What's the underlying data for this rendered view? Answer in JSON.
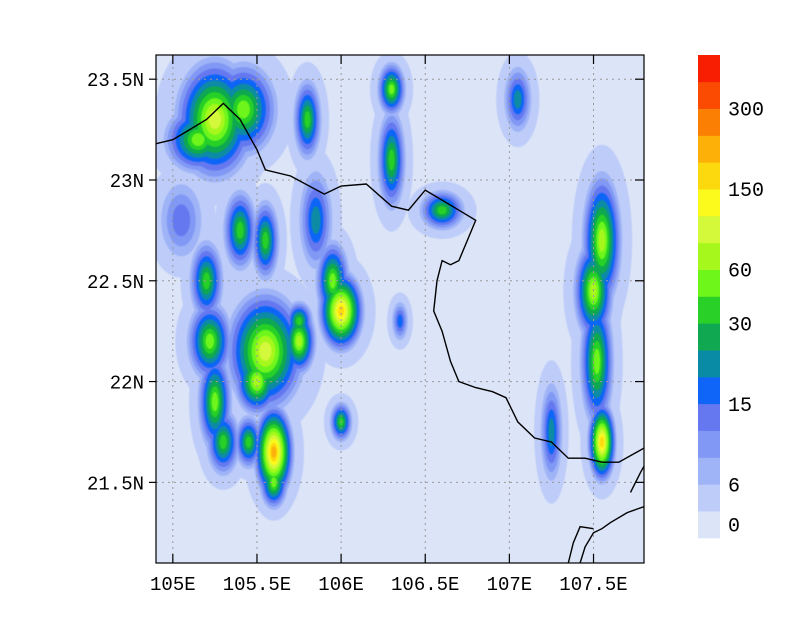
{
  "chart_data": {
    "type": "heatmap",
    "title": "",
    "xlabel": "",
    "ylabel": "",
    "xlim": [
      104.9,
      107.8
    ],
    "ylim": [
      21.1,
      23.62
    ],
    "x_ticks": [
      {
        "value": 105.0,
        "label": "105E"
      },
      {
        "value": 105.5,
        "label": "105.5E"
      },
      {
        "value": 106.0,
        "label": "106E"
      },
      {
        "value": 106.5,
        "label": "106.5E"
      },
      {
        "value": 107.0,
        "label": "107E"
      },
      {
        "value": 107.5,
        "label": "107.5E"
      }
    ],
    "y_ticks": [
      {
        "value": 21.5,
        "label": "21.5N"
      },
      {
        "value": 22.0,
        "label": "22N"
      },
      {
        "value": 22.5,
        "label": "22.5N"
      },
      {
        "value": 23.0,
        "label": "23N"
      },
      {
        "value": 23.5,
        "label": "23.5N"
      }
    ],
    "grid": true,
    "colorbar": {
      "levels": [
        {
          "value": 0,
          "color": "#dce4f8"
        },
        {
          "value": 3,
          "color": "#bdccf8"
        },
        {
          "value": 6,
          "color": "#9fb3f7"
        },
        {
          "value": 9,
          "color": "#8199f4"
        },
        {
          "value": 12,
          "color": "#6578f0"
        },
        {
          "value": 15,
          "color": "#0f65f7"
        },
        {
          "value": 20,
          "color": "#0a8ba5"
        },
        {
          "value": 25,
          "color": "#10a850"
        },
        {
          "value": 30,
          "color": "#28d028"
        },
        {
          "value": 45,
          "color": "#6ef61a"
        },
        {
          "value": 60,
          "color": "#a6f81c"
        },
        {
          "value": 80,
          "color": "#d4f83a"
        },
        {
          "value": 100,
          "color": "#fbfa1c"
        },
        {
          "value": 150,
          "color": "#fcd80f"
        },
        {
          "value": 200,
          "color": "#fdb007"
        },
        {
          "value": 250,
          "color": "#fb7f03"
        },
        {
          "value": 300,
          "color": "#fb4b03"
        },
        {
          "value": 350,
          "color": "#f81e02"
        }
      ],
      "labels": [
        "0",
        "6",
        "15",
        "30",
        "60",
        "150",
        "300"
      ]
    },
    "precip_cells": [
      {
        "lon": 105.25,
        "lat": 23.3,
        "rx": 0.14,
        "ry": 0.18,
        "value": 80
      },
      {
        "lon": 105.15,
        "lat": 23.2,
        "rx": 0.12,
        "ry": 0.1,
        "value": 45
      },
      {
        "lon": 105.42,
        "lat": 23.35,
        "rx": 0.12,
        "ry": 0.14,
        "value": 45
      },
      {
        "lon": 105.05,
        "lat": 22.8,
        "rx": 0.08,
        "ry": 0.12,
        "value": 12
      },
      {
        "lon": 105.2,
        "lat": 22.5,
        "rx": 0.06,
        "ry": 0.12,
        "value": 30
      },
      {
        "lon": 105.22,
        "lat": 22.2,
        "rx": 0.08,
        "ry": 0.12,
        "value": 45
      },
      {
        "lon": 105.25,
        "lat": 21.9,
        "rx": 0.06,
        "ry": 0.15,
        "value": 45
      },
      {
        "lon": 105.3,
        "lat": 21.7,
        "rx": 0.06,
        "ry": 0.1,
        "value": 30
      },
      {
        "lon": 105.55,
        "lat": 22.15,
        "rx": 0.14,
        "ry": 0.18,
        "value": 80
      },
      {
        "lon": 105.5,
        "lat": 22.0,
        "rx": 0.08,
        "ry": 0.1,
        "value": 60
      },
      {
        "lon": 105.6,
        "lat": 21.65,
        "rx": 0.07,
        "ry": 0.14,
        "value": 200
      },
      {
        "lon": 105.6,
        "lat": 21.5,
        "rx": 0.05,
        "ry": 0.08,
        "value": 45
      },
      {
        "lon": 105.45,
        "lat": 21.7,
        "rx": 0.05,
        "ry": 0.08,
        "value": 30
      },
      {
        "lon": 105.4,
        "lat": 22.75,
        "rx": 0.06,
        "ry": 0.12,
        "value": 30
      },
      {
        "lon": 105.55,
        "lat": 22.7,
        "rx": 0.05,
        "ry": 0.12,
        "value": 30
      },
      {
        "lon": 105.75,
        "lat": 22.2,
        "rx": 0.06,
        "ry": 0.1,
        "value": 60
      },
      {
        "lon": 105.75,
        "lat": 22.3,
        "rx": 0.05,
        "ry": 0.06,
        "value": 30
      },
      {
        "lon": 105.8,
        "lat": 23.3,
        "rx": 0.05,
        "ry": 0.12,
        "value": 30
      },
      {
        "lon": 105.85,
        "lat": 22.8,
        "rx": 0.06,
        "ry": 0.15,
        "value": 20
      },
      {
        "lon": 106.0,
        "lat": 22.35,
        "rx": 0.08,
        "ry": 0.12,
        "value": 150
      },
      {
        "lon": 105.95,
        "lat": 22.5,
        "rx": 0.06,
        "ry": 0.12,
        "value": 45
      },
      {
        "lon": 106.0,
        "lat": 21.8,
        "rx": 0.04,
        "ry": 0.06,
        "value": 30
      },
      {
        "lon": 106.3,
        "lat": 23.45,
        "rx": 0.05,
        "ry": 0.08,
        "value": 45
      },
      {
        "lon": 106.3,
        "lat": 23.1,
        "rx": 0.05,
        "ry": 0.15,
        "value": 30
      },
      {
        "lon": 106.35,
        "lat": 22.3,
        "rx": 0.03,
        "ry": 0.06,
        "value": 15
      },
      {
        "lon": 106.6,
        "lat": 22.85,
        "rx": 0.08,
        "ry": 0.06,
        "value": 30
      },
      {
        "lon": 107.05,
        "lat": 23.4,
        "rx": 0.05,
        "ry": 0.1,
        "value": 20
      },
      {
        "lon": 107.25,
        "lat": 21.75,
        "rx": 0.04,
        "ry": 0.15,
        "value": 20
      },
      {
        "lon": 107.55,
        "lat": 22.7,
        "rx": 0.07,
        "ry": 0.2,
        "value": 60
      },
      {
        "lon": 107.5,
        "lat": 22.45,
        "rx": 0.07,
        "ry": 0.15,
        "value": 60
      },
      {
        "lon": 107.52,
        "lat": 22.1,
        "rx": 0.06,
        "ry": 0.2,
        "value": 45
      },
      {
        "lon": 107.55,
        "lat": 21.7,
        "rx": 0.05,
        "ry": 0.12,
        "value": 150
      }
    ],
    "coastline": [
      [
        [
          104.9,
          23.18
        ],
        [
          105.0,
          23.2
        ],
        [
          105.1,
          23.25
        ],
        [
          105.2,
          23.3
        ],
        [
          105.3,
          23.38
        ],
        [
          105.4,
          23.3
        ],
        [
          105.5,
          23.15
        ],
        [
          105.55,
          23.05
        ],
        [
          105.7,
          23.02
        ],
        [
          105.9,
          22.93
        ],
        [
          106.0,
          22.97
        ],
        [
          106.15,
          22.98
        ],
        [
          106.3,
          22.87
        ],
        [
          106.4,
          22.85
        ],
        [
          106.5,
          22.95
        ],
        [
          106.6,
          22.9
        ],
        [
          106.7,
          22.85
        ],
        [
          106.8,
          22.8
        ],
        [
          106.75,
          22.7
        ],
        [
          106.7,
          22.6
        ],
        [
          106.65,
          22.58
        ],
        [
          106.6,
          22.6
        ],
        [
          106.57,
          22.5
        ],
        [
          106.55,
          22.35
        ],
        [
          106.6,
          22.25
        ],
        [
          106.65,
          22.1
        ],
        [
          106.7,
          22.0
        ],
        [
          106.8,
          21.97
        ],
        [
          106.9,
          21.95
        ],
        [
          106.98,
          21.92
        ],
        [
          107.05,
          21.8
        ],
        [
          107.15,
          21.72
        ],
        [
          107.25,
          21.7
        ],
        [
          107.35,
          21.62
        ],
        [
          107.45,
          21.62
        ],
        [
          107.55,
          21.6
        ],
        [
          107.65,
          21.6
        ],
        [
          107.8,
          21.67
        ]
      ],
      [
        [
          107.42,
          21.1
        ],
        [
          107.45,
          21.18
        ],
        [
          107.5,
          21.25
        ],
        [
          107.55,
          21.27
        ],
        [
          107.6,
          21.3
        ],
        [
          107.7,
          21.35
        ],
        [
          107.8,
          21.38
        ]
      ],
      [
        [
          107.35,
          21.1
        ],
        [
          107.38,
          21.2
        ],
        [
          107.42,
          21.28
        ],
        [
          107.5,
          21.27
        ]
      ],
      [
        [
          107.72,
          21.45
        ],
        [
          107.78,
          21.55
        ],
        [
          107.8,
          21.58
        ]
      ]
    ]
  }
}
